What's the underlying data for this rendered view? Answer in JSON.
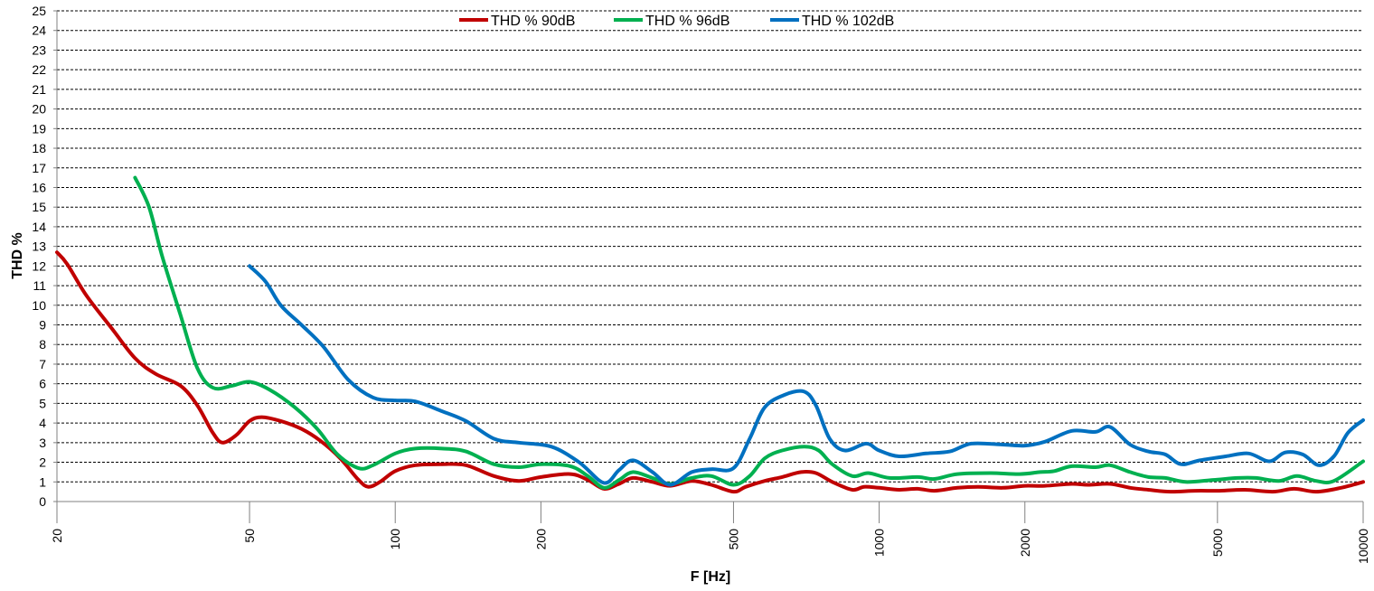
{
  "chart_data": {
    "type": "line",
    "title": "",
    "xlabel": "F [Hz]",
    "ylabel": "THD %",
    "x_scale": "log",
    "xlim": [
      20,
      10000
    ],
    "ylim": [
      0,
      25
    ],
    "x_ticks": [
      20,
      50,
      100,
      200,
      500,
      1000,
      2000,
      5000,
      10000
    ],
    "y_ticks": [
      0,
      1,
      2,
      3,
      4,
      5,
      6,
      7,
      8,
      9,
      10,
      11,
      12,
      13,
      14,
      15,
      16,
      17,
      18,
      19,
      20,
      21,
      22,
      23,
      24,
      25
    ],
    "grid": "horizontal dashed",
    "legend_position": "top-center",
    "series": [
      {
        "name": "THD % 90dB",
        "color": "#c00000",
        "points": [
          [
            20,
            12.7
          ],
          [
            21,
            12.1
          ],
          [
            23,
            10.5
          ],
          [
            26,
            8.8
          ],
          [
            29,
            7.3
          ],
          [
            32,
            6.5
          ],
          [
            36,
            5.9
          ],
          [
            39,
            4.9
          ],
          [
            42,
            3.5
          ],
          [
            44,
            3.0
          ],
          [
            47,
            3.4
          ],
          [
            50,
            4.1
          ],
          [
            53,
            4.3
          ],
          [
            58,
            4.1
          ],
          [
            64,
            3.7
          ],
          [
            70,
            3.1
          ],
          [
            77,
            2.2
          ],
          [
            84,
            1.1
          ],
          [
            88,
            0.75
          ],
          [
            93,
            1.0
          ],
          [
            100,
            1.55
          ],
          [
            110,
            1.85
          ],
          [
            125,
            1.9
          ],
          [
            140,
            1.85
          ],
          [
            160,
            1.3
          ],
          [
            180,
            1.05
          ],
          [
            200,
            1.25
          ],
          [
            230,
            1.4
          ],
          [
            250,
            1.1
          ],
          [
            270,
            0.65
          ],
          [
            290,
            0.9
          ],
          [
            310,
            1.2
          ],
          [
            340,
            1.0
          ],
          [
            370,
            0.8
          ],
          [
            410,
            1.05
          ],
          [
            450,
            0.85
          ],
          [
            500,
            0.5
          ],
          [
            530,
            0.75
          ],
          [
            580,
            1.05
          ],
          [
            630,
            1.25
          ],
          [
            690,
            1.5
          ],
          [
            740,
            1.45
          ],
          [
            800,
            1.0
          ],
          [
            880,
            0.6
          ],
          [
            930,
            0.75
          ],
          [
            1000,
            0.7
          ],
          [
            1100,
            0.6
          ],
          [
            1200,
            0.65
          ],
          [
            1300,
            0.55
          ],
          [
            1450,
            0.7
          ],
          [
            1600,
            0.75
          ],
          [
            1800,
            0.7
          ],
          [
            2000,
            0.8
          ],
          [
            2200,
            0.8
          ],
          [
            2500,
            0.9
          ],
          [
            2700,
            0.85
          ],
          [
            3000,
            0.9
          ],
          [
            3300,
            0.7
          ],
          [
            3600,
            0.6
          ],
          [
            4000,
            0.5
          ],
          [
            4500,
            0.55
          ],
          [
            5000,
            0.55
          ],
          [
            5700,
            0.6
          ],
          [
            6500,
            0.5
          ],
          [
            7200,
            0.65
          ],
          [
            8000,
            0.5
          ],
          [
            9000,
            0.7
          ],
          [
            10000,
            1.0
          ]
        ]
      },
      {
        "name": "THD % 96dB",
        "color": "#00b050",
        "points": [
          [
            29,
            16.5
          ],
          [
            31,
            15.0
          ],
          [
            33,
            12.5
          ],
          [
            36,
            9.5
          ],
          [
            39,
            6.8
          ],
          [
            42,
            5.8
          ],
          [
            46,
            5.9
          ],
          [
            50,
            6.1
          ],
          [
            55,
            5.7
          ],
          [
            62,
            4.8
          ],
          [
            69,
            3.7
          ],
          [
            76,
            2.4
          ],
          [
            84,
            1.7
          ],
          [
            90,
            1.85
          ],
          [
            100,
            2.45
          ],
          [
            110,
            2.7
          ],
          [
            125,
            2.7
          ],
          [
            140,
            2.55
          ],
          [
            160,
            1.9
          ],
          [
            180,
            1.75
          ],
          [
            200,
            1.9
          ],
          [
            230,
            1.8
          ],
          [
            250,
            1.3
          ],
          [
            270,
            0.7
          ],
          [
            290,
            1.1
          ],
          [
            310,
            1.5
          ],
          [
            340,
            1.2
          ],
          [
            370,
            0.9
          ],
          [
            410,
            1.2
          ],
          [
            450,
            1.3
          ],
          [
            500,
            0.85
          ],
          [
            540,
            1.3
          ],
          [
            580,
            2.2
          ],
          [
            630,
            2.6
          ],
          [
            700,
            2.8
          ],
          [
            750,
            2.6
          ],
          [
            800,
            1.9
          ],
          [
            880,
            1.3
          ],
          [
            950,
            1.45
          ],
          [
            1050,
            1.2
          ],
          [
            1200,
            1.25
          ],
          [
            1300,
            1.15
          ],
          [
            1450,
            1.4
          ],
          [
            1700,
            1.45
          ],
          [
            1950,
            1.4
          ],
          [
            2150,
            1.5
          ],
          [
            2300,
            1.55
          ],
          [
            2500,
            1.8
          ],
          [
            2800,
            1.75
          ],
          [
            3000,
            1.85
          ],
          [
            3300,
            1.5
          ],
          [
            3600,
            1.25
          ],
          [
            3900,
            1.2
          ],
          [
            4300,
            1.0
          ],
          [
            4900,
            1.1
          ],
          [
            5500,
            1.2
          ],
          [
            6000,
            1.2
          ],
          [
            6700,
            1.05
          ],
          [
            7300,
            1.3
          ],
          [
            8000,
            1.05
          ],
          [
            8700,
            1.05
          ],
          [
            10000,
            2.05
          ]
        ]
      },
      {
        "name": "THD % 102dB",
        "color": "#0070c0",
        "points": [
          [
            50,
            12.0
          ],
          [
            54,
            11.2
          ],
          [
            58,
            10.0
          ],
          [
            64,
            9.0
          ],
          [
            71,
            7.9
          ],
          [
            80,
            6.2
          ],
          [
            90,
            5.3
          ],
          [
            100,
            5.15
          ],
          [
            110,
            5.1
          ],
          [
            125,
            4.6
          ],
          [
            140,
            4.1
          ],
          [
            160,
            3.2
          ],
          [
            180,
            3.0
          ],
          [
            210,
            2.8
          ],
          [
            240,
            2.0
          ],
          [
            270,
            0.95
          ],
          [
            290,
            1.6
          ],
          [
            310,
            2.1
          ],
          [
            340,
            1.5
          ],
          [
            370,
            0.85
          ],
          [
            410,
            1.5
          ],
          [
            450,
            1.65
          ],
          [
            500,
            1.7
          ],
          [
            540,
            3.2
          ],
          [
            580,
            4.8
          ],
          [
            640,
            5.45
          ],
          [
            700,
            5.6
          ],
          [
            740,
            4.9
          ],
          [
            790,
            3.2
          ],
          [
            850,
            2.6
          ],
          [
            940,
            2.95
          ],
          [
            1000,
            2.6
          ],
          [
            1100,
            2.3
          ],
          [
            1250,
            2.45
          ],
          [
            1400,
            2.55
          ],
          [
            1550,
            2.95
          ],
          [
            1800,
            2.9
          ],
          [
            2000,
            2.85
          ],
          [
            2200,
            3.05
          ],
          [
            2500,
            3.6
          ],
          [
            2800,
            3.55
          ],
          [
            3000,
            3.8
          ],
          [
            3300,
            2.9
          ],
          [
            3600,
            2.55
          ],
          [
            3900,
            2.4
          ],
          [
            4200,
            1.9
          ],
          [
            4600,
            2.1
          ],
          [
            5200,
            2.3
          ],
          [
            5800,
            2.45
          ],
          [
            6400,
            2.05
          ],
          [
            6900,
            2.5
          ],
          [
            7500,
            2.4
          ],
          [
            8100,
            1.85
          ],
          [
            8700,
            2.3
          ],
          [
            9300,
            3.5
          ],
          [
            10000,
            4.15
          ]
        ]
      }
    ]
  }
}
